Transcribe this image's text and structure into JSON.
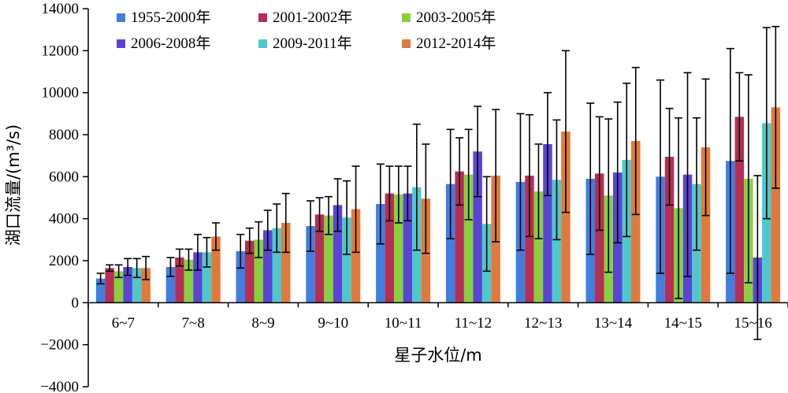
{
  "chart_data": {
    "type": "bar",
    "xlabel": "星子水位/m",
    "ylabel": "湖口流量/(m³/s)",
    "ylim": [
      -4000,
      14000
    ],
    "yticks": [
      -4000,
      -2000,
      0,
      2000,
      4000,
      6000,
      8000,
      10000,
      12000,
      14000
    ],
    "ytick_labels": [
      "−4000",
      "−2000",
      "0",
      "2000",
      "4000",
      "6000",
      "8000",
      "10000",
      "12000",
      "14000"
    ],
    "grid": false,
    "legend_position": "top-left",
    "error_bars": true,
    "categories": [
      "6~7",
      "7~8",
      "8~9",
      "9~10",
      "10~11",
      "11~12",
      "12~13",
      "13~14",
      "14~15",
      "15~16"
    ],
    "series": [
      {
        "name": "1955-2000年",
        "color": "#3f7fe0",
        "values": [
          1150,
          1700,
          2450,
          3650,
          4700,
          5650,
          5750,
          5900,
          6000,
          6750
        ],
        "errors": [
          250,
          450,
          800,
          1200,
          1900,
          2600,
          3250,
          3600,
          4600,
          5350
        ]
      },
      {
        "name": "2001-2002年",
        "color": "#b52f55",
        "values": [
          1650,
          2150,
          2950,
          4200,
          5200,
          6250,
          6050,
          6150,
          6950,
          8850
        ],
        "errors": [
          150,
          400,
          600,
          800,
          1300,
          1600,
          2900,
          2700,
          2300,
          2100
        ]
      },
      {
        "name": "2003-2005年",
        "color": "#88d03c",
        "values": [
          1500,
          2050,
          3000,
          4150,
          5150,
          6100,
          5300,
          5100,
          4500,
          5900
        ],
        "errors": [
          300,
          500,
          850,
          900,
          1350,
          2150,
          2250,
          3650,
          4300,
          4950
        ]
      },
      {
        "name": "2006-2008年",
        "color": "#5b44d4",
        "values": [
          1700,
          2400,
          3450,
          4650,
          5200,
          7200,
          7550,
          6200,
          6100,
          2150
        ],
        "errors": [
          400,
          850,
          950,
          1250,
          1300,
          2150,
          2450,
          3350,
          4850,
          3900
        ]
      },
      {
        "name": "2009-2011年",
        "color": "#4dc9cc",
        "values": [
          1650,
          2400,
          3550,
          4050,
          5500,
          3750,
          5850,
          6800,
          5650,
          8550
        ],
        "errors": [
          450,
          700,
          1150,
          1750,
          3000,
          2250,
          2850,
          3650,
          3150,
          4550
        ]
      },
      {
        "name": "2012-2014年",
        "color": "#e07a3c",
        "values": [
          1650,
          3150,
          3800,
          4450,
          4950,
          6050,
          8150,
          7700,
          7400,
          9300
        ],
        "errors": [
          550,
          650,
          1400,
          2050,
          2600,
          3150,
          3850,
          3500,
          3250,
          3850
        ]
      }
    ]
  }
}
